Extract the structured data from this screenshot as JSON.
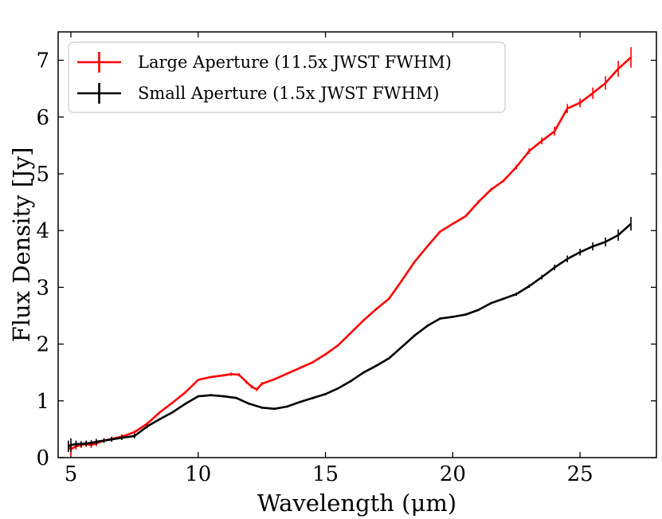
{
  "chart_data": {
    "type": "line",
    "title": "",
    "xlabel": "Wavelength (μm)",
    "ylabel": "Flux Density [Jy]",
    "xlim": [
      4.5,
      28.0
    ],
    "ylim": [
      0,
      7.5
    ],
    "xticks": [
      5,
      10,
      15,
      20,
      25
    ],
    "yticks": [
      0,
      1,
      2,
      3,
      4,
      5,
      6,
      7
    ],
    "xtick_labels": [
      "5",
      "10",
      "15",
      "20",
      "25"
    ],
    "ytick_labels": [
      "0",
      "1",
      "2",
      "3",
      "4",
      "5",
      "6",
      "7"
    ],
    "grid": false,
    "legend_position": "top-left",
    "series": [
      {
        "name": "Large Aperture (11.5x JWST FWHM)",
        "color": "#ff0000",
        "x": [
          4.9,
          5.0,
          5.2,
          5.4,
          5.6,
          5.8,
          6.0,
          6.3,
          6.6,
          7.0,
          7.5,
          8.0,
          8.5,
          9.0,
          9.5,
          10.0,
          10.5,
          11.0,
          11.3,
          11.6,
          11.9,
          12.1,
          12.3,
          12.5,
          13.0,
          13.5,
          14.0,
          14.5,
          15.0,
          15.5,
          16.0,
          16.5,
          17.0,
          17.5,
          18.0,
          18.5,
          19.0,
          19.5,
          20.0,
          20.5,
          21.0,
          21.5,
          22.0,
          22.5,
          23.0,
          23.5,
          24.0,
          24.5,
          25.0,
          25.5,
          26.0,
          26.5,
          27.0
        ],
        "y": [
          0.18,
          0.15,
          0.2,
          0.22,
          0.24,
          0.22,
          0.25,
          0.3,
          0.33,
          0.37,
          0.45,
          0.6,
          0.8,
          0.97,
          1.15,
          1.37,
          1.42,
          1.45,
          1.47,
          1.46,
          1.33,
          1.25,
          1.2,
          1.3,
          1.38,
          1.48,
          1.58,
          1.68,
          1.82,
          1.98,
          2.2,
          2.42,
          2.62,
          2.8,
          3.12,
          3.45,
          3.72,
          3.98,
          4.12,
          4.25,
          4.5,
          4.72,
          4.88,
          5.12,
          5.4,
          5.58,
          5.75,
          6.15,
          6.25,
          6.42,
          6.6,
          6.85,
          7.05
        ],
        "err": [
          0.08,
          0.12,
          0.06,
          0.05,
          0.05,
          0.05,
          0.05,
          0.04,
          0.04,
          0.04,
          0.03,
          0.03,
          0.02,
          0.02,
          0.02,
          0.02,
          0.02,
          0.02,
          0.03,
          0.03,
          0.03,
          0.03,
          0.03,
          0.03,
          0.02,
          0.02,
          0.02,
          0.02,
          0.02,
          0.02,
          0.02,
          0.02,
          0.02,
          0.02,
          0.02,
          0.02,
          0.02,
          0.02,
          0.02,
          0.02,
          0.03,
          0.03,
          0.03,
          0.04,
          0.05,
          0.06,
          0.08,
          0.08,
          0.08,
          0.1,
          0.12,
          0.14,
          0.18
        ]
      },
      {
        "name": "Small Aperture (1.5x JWST FWHM)",
        "color": "#000000",
        "x": [
          4.9,
          5.0,
          5.2,
          5.4,
          5.6,
          5.8,
          6.0,
          6.3,
          6.6,
          7.0,
          7.5,
          8.0,
          8.5,
          9.0,
          9.5,
          10.0,
          10.5,
          11.0,
          11.5,
          12.0,
          12.5,
          13.0,
          13.5,
          14.0,
          14.5,
          15.0,
          15.5,
          16.0,
          16.5,
          17.0,
          17.5,
          18.0,
          18.5,
          19.0,
          19.5,
          20.0,
          20.5,
          21.0,
          21.5,
          22.0,
          22.5,
          23.0,
          23.5,
          24.0,
          24.5,
          25.0,
          25.5,
          26.0,
          26.5,
          27.0
        ],
        "y": [
          0.2,
          0.22,
          0.24,
          0.24,
          0.25,
          0.26,
          0.28,
          0.3,
          0.32,
          0.35,
          0.38,
          0.55,
          0.68,
          0.8,
          0.95,
          1.08,
          1.1,
          1.08,
          1.05,
          0.95,
          0.88,
          0.86,
          0.9,
          0.98,
          1.05,
          1.12,
          1.22,
          1.35,
          1.5,
          1.62,
          1.75,
          1.95,
          2.15,
          2.32,
          2.45,
          2.48,
          2.52,
          2.6,
          2.72,
          2.8,
          2.88,
          3.02,
          3.18,
          3.35,
          3.5,
          3.62,
          3.72,
          3.8,
          3.92,
          4.12
        ],
        "err": [
          0.1,
          0.12,
          0.06,
          0.05,
          0.05,
          0.05,
          0.05,
          0.04,
          0.04,
          0.04,
          0.04,
          0.03,
          0.02,
          0.02,
          0.02,
          0.02,
          0.02,
          0.02,
          0.02,
          0.02,
          0.02,
          0.02,
          0.02,
          0.02,
          0.02,
          0.02,
          0.02,
          0.02,
          0.02,
          0.02,
          0.02,
          0.02,
          0.02,
          0.02,
          0.02,
          0.02,
          0.02,
          0.02,
          0.02,
          0.02,
          0.03,
          0.03,
          0.04,
          0.05,
          0.06,
          0.06,
          0.07,
          0.08,
          0.1,
          0.12
        ]
      }
    ]
  }
}
